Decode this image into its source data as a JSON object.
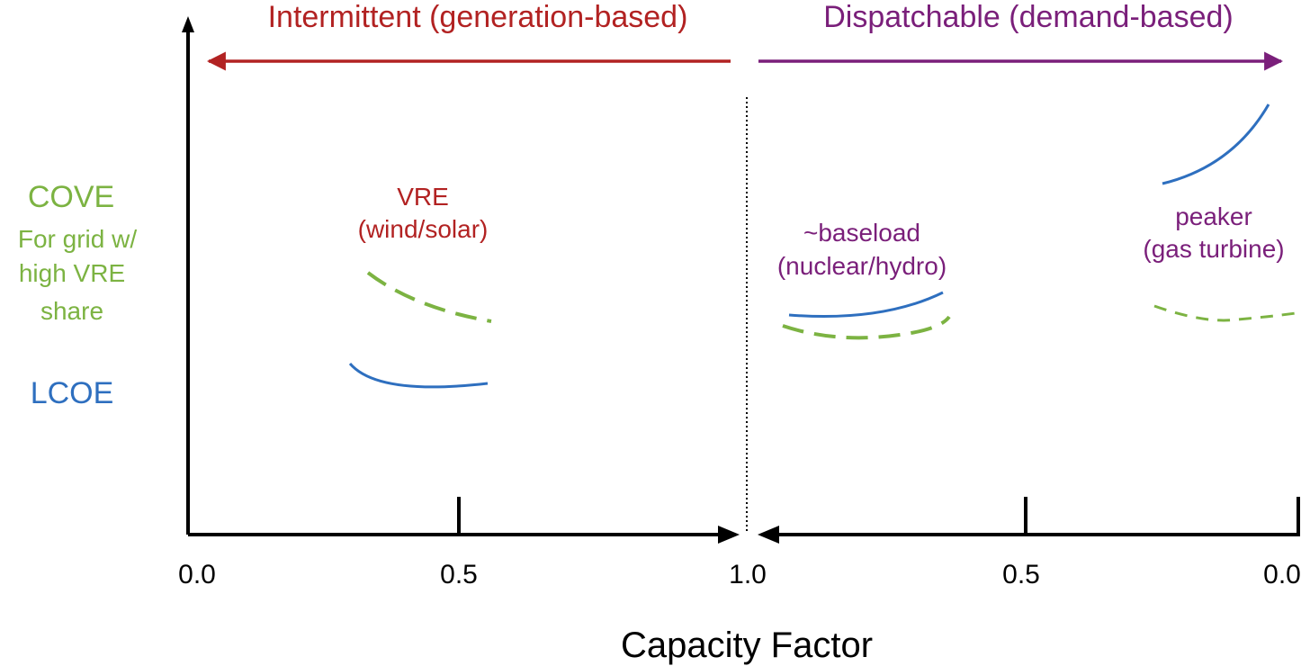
{
  "colors": {
    "intermittent": "#b22222",
    "dispatchable": "#7a1f7a",
    "cove": "#7cb342",
    "lcoe": "#2e6fbf",
    "axis": "#000000"
  },
  "header": {
    "intermittent": "Intermittent (generation-based)",
    "dispatchable": "Dispatchable (demand-based)"
  },
  "legend": {
    "cove": "COVE",
    "cove_desc_lines": [
      "For grid w/",
      "high VRE",
      "share"
    ],
    "lcoe": "LCOE"
  },
  "groups": {
    "vre": [
      "VRE",
      "(wind/solar)"
    ],
    "baseload": [
      "~baseload",
      "(nuclear/hydro)"
    ],
    "peaker": [
      "peaker",
      "(gas turbine)"
    ]
  },
  "axis": {
    "xlabel": "Capacity Factor",
    "ticks": [
      "0.0",
      "0.5",
      "1.0",
      "0.5",
      "0.0"
    ]
  }
}
